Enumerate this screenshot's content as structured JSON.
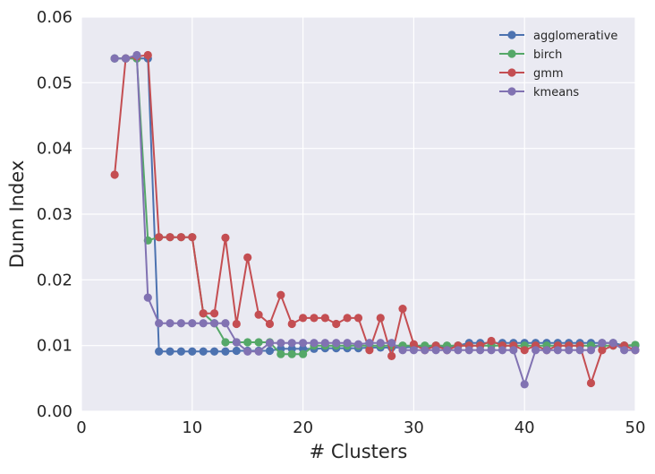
{
  "chart_data": {
    "type": "line",
    "xlabel": "# Clusters",
    "ylabel": "Dunn Index",
    "xlim": [
      0,
      50
    ],
    "ylim": [
      0,
      0.06
    ],
    "xticks": [
      "0",
      "10",
      "20",
      "30",
      "40",
      "50"
    ],
    "yticks": [
      "0.00",
      "0.01",
      "0.02",
      "0.03",
      "0.04",
      "0.05",
      "0.06"
    ],
    "grid": true,
    "background": "#eaeaf2",
    "legend_position": "top-right",
    "x": [
      3,
      4,
      5,
      6,
      7,
      8,
      9,
      10,
      11,
      12,
      13,
      14,
      15,
      16,
      17,
      18,
      19,
      20,
      21,
      22,
      23,
      24,
      25,
      26,
      27,
      28,
      29,
      30,
      31,
      32,
      33,
      34,
      35,
      36,
      37,
      38,
      39,
      40,
      41,
      42,
      43,
      44,
      45,
      46,
      47,
      48,
      49,
      50
    ],
    "series": [
      {
        "name": "agglomerative",
        "color": "#4c72b0",
        "values": [
          0.0537,
          0.0537,
          0.0537,
          0.0537,
          0.0091,
          0.0091,
          0.0091,
          0.0091,
          0.0091,
          0.0091,
          0.0091,
          0.0092,
          0.0092,
          0.0092,
          0.0092,
          0.0095,
          0.0095,
          0.0095,
          0.0095,
          0.0096,
          0.0096,
          0.0096,
          0.0096,
          0.0097,
          0.0097,
          0.0097,
          0.0097,
          0.0098,
          0.0098,
          0.0098,
          0.0098,
          0.01,
          0.0104,
          0.0104,
          0.0104,
          0.0104,
          0.0104,
          0.0104,
          0.0104,
          0.0104,
          0.0104,
          0.0104,
          0.0104,
          0.0104,
          0.0104,
          0.0104,
          0.01,
          0.01
        ]
      },
      {
        "name": "birch",
        "color": "#55a868",
        "values": [
          0.0537,
          0.0537,
          0.0537,
          0.026,
          0.0265,
          0.0265,
          0.0265,
          0.0265,
          0.0149,
          0.0134,
          0.0105,
          0.0105,
          0.0105,
          0.0105,
          0.0105,
          0.0087,
          0.0087,
          0.0087,
          0.01,
          0.01,
          0.01,
          0.01,
          0.01,
          0.01,
          0.01,
          0.01,
          0.01,
          0.01,
          0.01,
          0.01,
          0.01,
          0.01,
          0.01,
          0.01,
          0.01,
          0.01,
          0.01,
          0.01,
          0.01,
          0.01,
          0.01,
          0.01,
          0.01,
          0.01,
          0.01,
          0.01,
          0.01,
          0.0101
        ]
      },
      {
        "name": "gmm",
        "color": "#c44e52",
        "values": [
          0.036,
          0.0537,
          0.054,
          0.0542,
          0.0265,
          0.0265,
          0.0265,
          0.0265,
          0.0149,
          0.0149,
          0.0264,
          0.0133,
          0.0234,
          0.0147,
          0.0133,
          0.0177,
          0.0133,
          0.0142,
          0.0142,
          0.0142,
          0.0133,
          0.0142,
          0.0142,
          0.0093,
          0.0142,
          0.0084,
          0.0156,
          0.0102,
          0.0093,
          0.01,
          0.0093,
          0.01,
          0.01,
          0.01,
          0.0107,
          0.01,
          0.01,
          0.0093,
          0.01,
          0.0093,
          0.01,
          0.01,
          0.01,
          0.0043,
          0.0093,
          0.01,
          0.01,
          0.0093
        ]
      },
      {
        "name": "kmeans",
        "color": "#8172b2",
        "values": [
          0.0537,
          0.0537,
          0.0542,
          0.0173,
          0.0134,
          0.0134,
          0.0134,
          0.0134,
          0.0134,
          0.0134,
          0.0134,
          0.0105,
          0.0091,
          0.0091,
          0.0104,
          0.0104,
          0.0104,
          0.0104,
          0.0104,
          0.0104,
          0.0104,
          0.0104,
          0.0102,
          0.0104,
          0.0104,
          0.0104,
          0.0093,
          0.0093,
          0.0093,
          0.0093,
          0.0093,
          0.0093,
          0.0093,
          0.0093,
          0.0093,
          0.0093,
          0.0093,
          0.0041,
          0.0093,
          0.0093,
          0.0093,
          0.0093,
          0.0093,
          0.0093,
          0.0104,
          0.0104,
          0.0093,
          0.0093
        ]
      }
    ]
  }
}
